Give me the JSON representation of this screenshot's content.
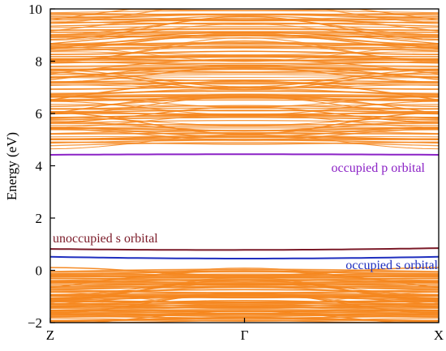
{
  "chart_data": {
    "type": "line",
    "title": "",
    "xlabel": "",
    "ylabel": "Energy (eV)",
    "ylim": [
      -2,
      10
    ],
    "x_ticks": [
      "Z",
      "Γ",
      "X"
    ],
    "y_ticks": [
      -2,
      0,
      2,
      4,
      6,
      8,
      10
    ],
    "grid": false,
    "legend": "none",
    "band_color": "#f5871f",
    "valence_band_region": [
      -2,
      0
    ],
    "conduction_band_region": [
      4.8,
      10
    ],
    "series": [
      {
        "name": "occupied p orbital",
        "color": "#8b22c6",
        "x": [
          0,
          0.5,
          1
        ],
        "values": [
          4.42,
          4.44,
          4.42
        ]
      },
      {
        "name": "unoccupied s orbital",
        "color": "#7b1a28",
        "x": [
          0,
          0.5,
          1
        ],
        "values": [
          0.82,
          0.78,
          0.85
        ]
      },
      {
        "name": "occupied s orbital",
        "color": "#1f2fbf",
        "x": [
          0,
          0.5,
          1
        ],
        "values": [
          0.52,
          0.45,
          0.52
        ]
      }
    ],
    "annotations": [
      {
        "text": "occupied p orbital",
        "color": "#8b22c6"
      },
      {
        "text": "unoccupied s orbital",
        "color": "#7b1a28"
      },
      {
        "text": "occupied s orbital",
        "color": "#1f2fbf"
      }
    ]
  }
}
